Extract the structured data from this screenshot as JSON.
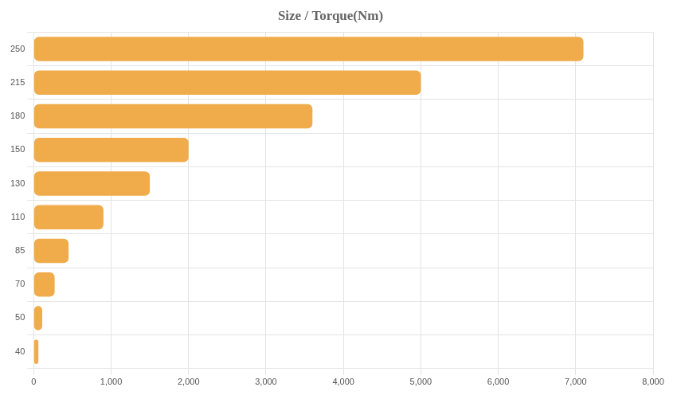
{
  "chart_data": {
    "type": "bar",
    "title": "Size / Torque(Nm)",
    "orientation": "horizontal",
    "categories": [
      "250",
      "215",
      "180",
      "150",
      "130",
      "110",
      "85",
      "70",
      "50",
      "40"
    ],
    "values": [
      7100,
      5000,
      3600,
      2000,
      1500,
      900,
      450,
      270,
      110,
      60
    ],
    "color": "#f0ab4a",
    "xlim": [
      0,
      8000
    ],
    "xticks": [
      0,
      {
        "value": 1000,
        "label": "1,000"
      },
      {
        "value": 2000,
        "label": "2,000"
      },
      {
        "value": 3000,
        "label": "3,000"
      },
      {
        "value": 4000,
        "label": "4,000"
      },
      {
        "value": 5000,
        "label": "5,000"
      },
      {
        "value": 6000,
        "label": "6,000"
      },
      {
        "value": 7000,
        "label": "7,000"
      },
      {
        "value": 8000,
        "label": "8,000"
      }
    ],
    "grid": true
  }
}
